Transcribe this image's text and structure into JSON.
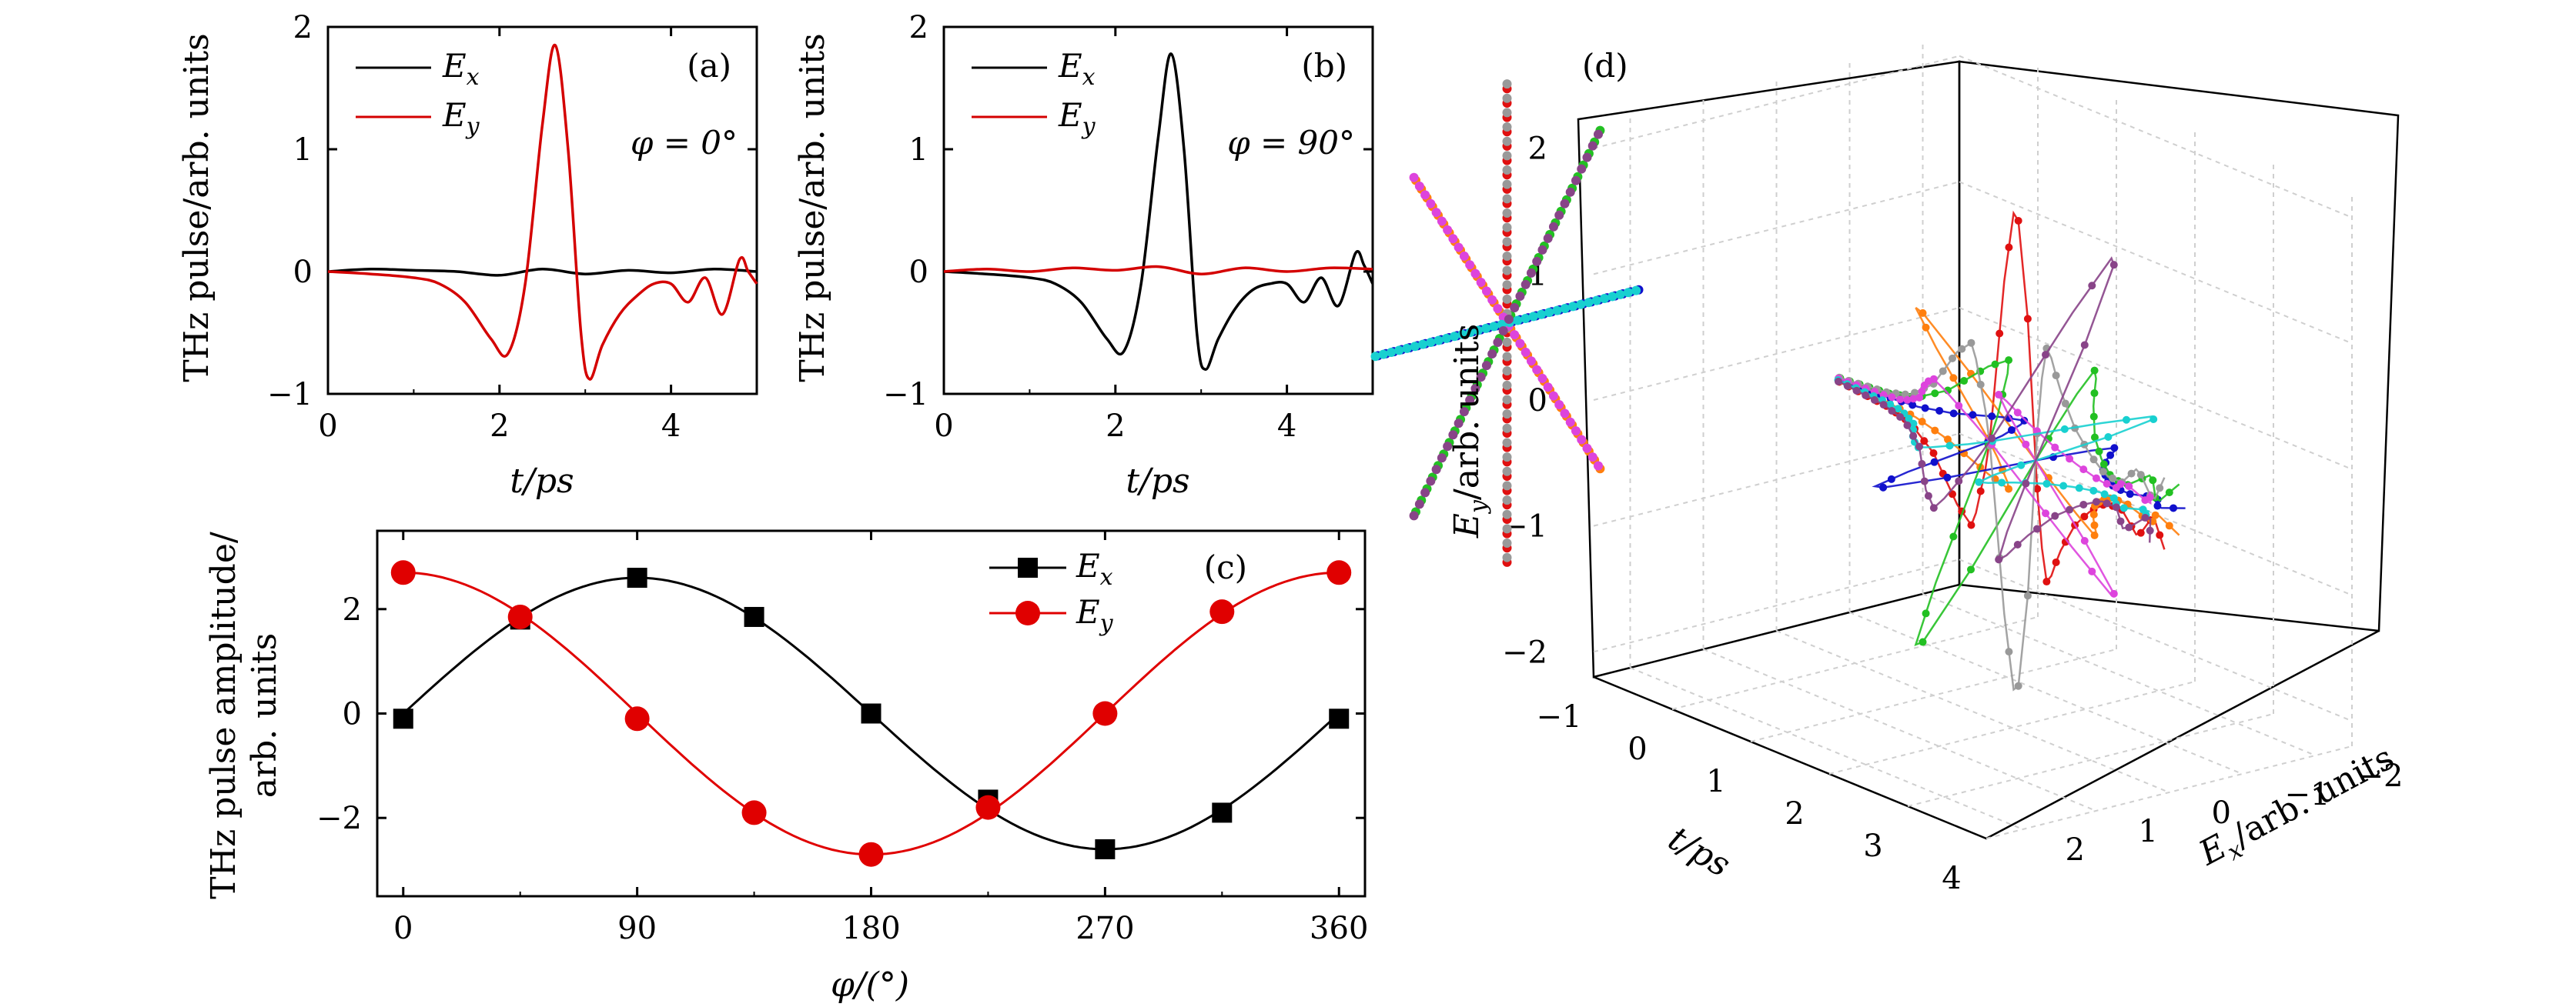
{
  "chart_data": [
    {
      "id": "a",
      "type": "line",
      "panel_label": "(a)",
      "annotation": "φ = 0°",
      "xlabel": "t/ps",
      "ylabel": "THz pulse/arb. units",
      "xlim": [
        0,
        5
      ],
      "ylim": [
        -1,
        2
      ],
      "xticks": [
        "0",
        "2",
        "4"
      ],
      "yticks": [
        "−1",
        "0",
        "1",
        "2"
      ],
      "series": [
        {
          "name": "Ex",
          "label_main": "E",
          "label_sub": "x",
          "color": "#000000",
          "x": [
            0,
            0.5,
            1.0,
            1.5,
            2.0,
            2.5,
            3.0,
            3.5,
            4.0,
            4.5,
            5.0
          ],
          "y": [
            0,
            0.02,
            0.01,
            0.0,
            -0.03,
            0.02,
            -0.02,
            0.01,
            -0.01,
            0.02,
            0.0
          ]
        },
        {
          "name": "Ey",
          "label_main": "E",
          "label_sub": "y",
          "color": "#d40000",
          "x": [
            0,
            0.5,
            1.0,
            1.3,
            1.6,
            1.9,
            2.1,
            2.3,
            2.5,
            2.65,
            2.8,
            2.95,
            3.05,
            3.2,
            3.4,
            3.6,
            3.8,
            4.0,
            4.2,
            4.4,
            4.6,
            4.8,
            4.9,
            5.0
          ],
          "y": [
            0,
            -0.02,
            -0.05,
            -0.1,
            -0.25,
            -0.55,
            -0.67,
            -0.1,
            1.2,
            1.85,
            1.0,
            -0.5,
            -0.88,
            -0.6,
            -0.35,
            -0.2,
            -0.1,
            -0.1,
            -0.25,
            -0.05,
            -0.35,
            0.1,
            0.0,
            -0.1
          ]
        }
      ]
    },
    {
      "id": "b",
      "type": "line",
      "panel_label": "(b)",
      "annotation": "φ = 90°",
      "xlabel": "t/ps",
      "ylabel": "THz pulse/arb. units",
      "xlim": [
        0,
        5
      ],
      "ylim": [
        -1,
        2
      ],
      "xticks": [
        "0",
        "2",
        "4"
      ],
      "yticks": [
        "−1",
        "0",
        "1",
        "2"
      ],
      "series": [
        {
          "name": "Ex",
          "label_main": "E",
          "label_sub": "x",
          "color": "#000000",
          "x": [
            0,
            0.5,
            1.0,
            1.3,
            1.6,
            1.9,
            2.1,
            2.3,
            2.5,
            2.65,
            2.8,
            2.95,
            3.05,
            3.2,
            3.4,
            3.6,
            3.8,
            4.0,
            4.2,
            4.4,
            4.6,
            4.8,
            4.9,
            5.0
          ],
          "y": [
            0,
            -0.02,
            -0.05,
            -0.1,
            -0.25,
            -0.55,
            -0.65,
            -0.1,
            1.1,
            1.78,
            1.0,
            -0.5,
            -0.8,
            -0.55,
            -0.3,
            -0.15,
            -0.1,
            -0.1,
            -0.25,
            -0.05,
            -0.28,
            0.15,
            0.05,
            -0.1
          ]
        },
        {
          "name": "Ey",
          "label_main": "E",
          "label_sub": "y",
          "color": "#d40000",
          "x": [
            0,
            0.5,
            1.0,
            1.5,
            2.0,
            2.5,
            3.0,
            3.5,
            4.0,
            4.5,
            5.0
          ],
          "y": [
            0,
            0.02,
            0.0,
            0.03,
            0.01,
            0.04,
            -0.02,
            0.03,
            0.0,
            0.03,
            0.02
          ]
        }
      ]
    },
    {
      "id": "c",
      "type": "line",
      "panel_label": "(c)",
      "xlabel": "φ/(°)",
      "ylabel_line1": "THz pulse amplitude/",
      "ylabel_line2": "arb. units",
      "xlim": [
        -10,
        370
      ],
      "ylim": [
        -3.5,
        3.5
      ],
      "xticks": [
        "0",
        "90",
        "180",
        "270",
        "360"
      ],
      "yticks": [
        "−2",
        "0",
        "2"
      ],
      "series": [
        {
          "name": "Ex",
          "label_main": "E",
          "label_sub": "x",
          "color": "#000000",
          "marker": "square",
          "amplitude": 2.6,
          "phase": "sin",
          "x": [
            0,
            45,
            90,
            135,
            180,
            225,
            270,
            315,
            360
          ],
          "y": [
            -0.1,
            1.8,
            2.6,
            1.85,
            0.0,
            -1.65,
            -2.6,
            -1.9,
            -0.1
          ]
        },
        {
          "name": "Ey",
          "label_main": "E",
          "label_sub": "y",
          "color": "#e00000",
          "marker": "circle",
          "amplitude": 2.7,
          "phase": "cos",
          "x": [
            0,
            45,
            90,
            135,
            180,
            225,
            270,
            315,
            360
          ],
          "y": [
            2.7,
            1.85,
            -0.1,
            -1.9,
            -2.7,
            -1.8,
            0.0,
            1.95,
            2.7
          ]
        }
      ]
    },
    {
      "id": "d",
      "type": "scatter",
      "panel_label": "(d)",
      "projection": "3d",
      "xlabel": "t/ps",
      "ylabel_main": "E",
      "ylabel_sub": "y",
      "ylabel_rest": "/arb. units",
      "zlabel_main": "E",
      "zlabel_sub": "x",
      "zlabel_rest": "/arb. units",
      "t_ticks": [
        "−1",
        "0",
        "1",
        "2",
        "3",
        "4"
      ],
      "ex_ticks": [
        "−2",
        "−1",
        "0",
        "1",
        "2"
      ],
      "ey_ticks": [
        "−2",
        "−1",
        "0",
        "1",
        "2"
      ],
      "polarization_angles_deg": [
        0,
        45,
        90,
        135,
        180,
        225,
        270,
        315
      ],
      "series_colors": [
        "#e01010",
        "#ff7f0e",
        "#1010cc",
        "#22c022",
        "#999999",
        "#dd44dd",
        "#18d0d0",
        "#884488"
      ]
    }
  ]
}
